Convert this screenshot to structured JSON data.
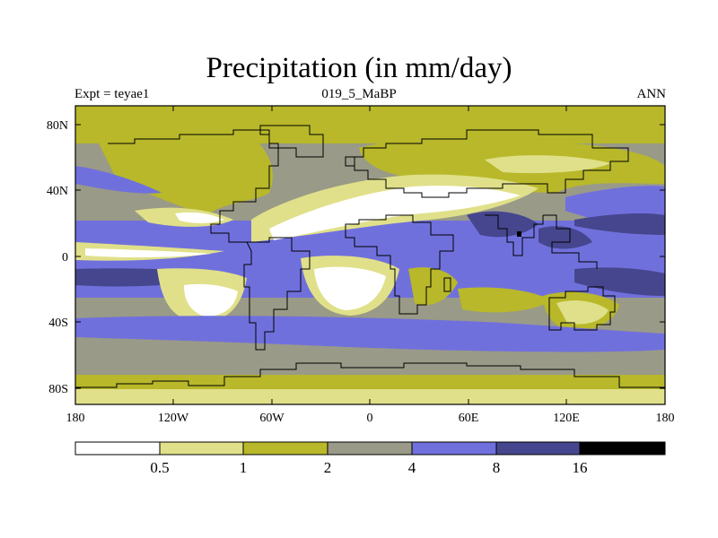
{
  "title": "Precipitation (in mm/day)",
  "left_label": "Expt = teyae1",
  "center_label": "019_5_MaBP",
  "right_label": "ANN",
  "y_tick_labels": [
    "80N",
    "40N",
    "0",
    "40S",
    "80S"
  ],
  "x_tick_labels": [
    "180",
    "120W",
    "60W",
    "0",
    "60E",
    "120E",
    "180"
  ],
  "colorbar": {
    "labels": [
      "0.5",
      "1",
      "2",
      "4",
      "8",
      "16"
    ],
    "colors": [
      "#ffffff",
      "#e0e08a",
      "#b8b82a",
      "#9a9a88",
      "#7070dd",
      "#46468e",
      "#000000"
    ]
  },
  "chart_data": {
    "type": "heatmap",
    "title": "Precipitation (in mm/day)",
    "variable": "Precipitation",
    "units": "mm/day",
    "experiment": "teyae1",
    "period": "019_5_MaBP",
    "season": "ANN",
    "xlim": [
      -180,
      180
    ],
    "ylim": [
      -90,
      90
    ],
    "xticks": [
      -180,
      -120,
      -60,
      0,
      60,
      120,
      180
    ],
    "yticks": [
      80,
      40,
      0,
      -40,
      -80
    ],
    "levels": [
      0.5,
      1,
      2,
      4,
      8,
      16
    ]
  }
}
